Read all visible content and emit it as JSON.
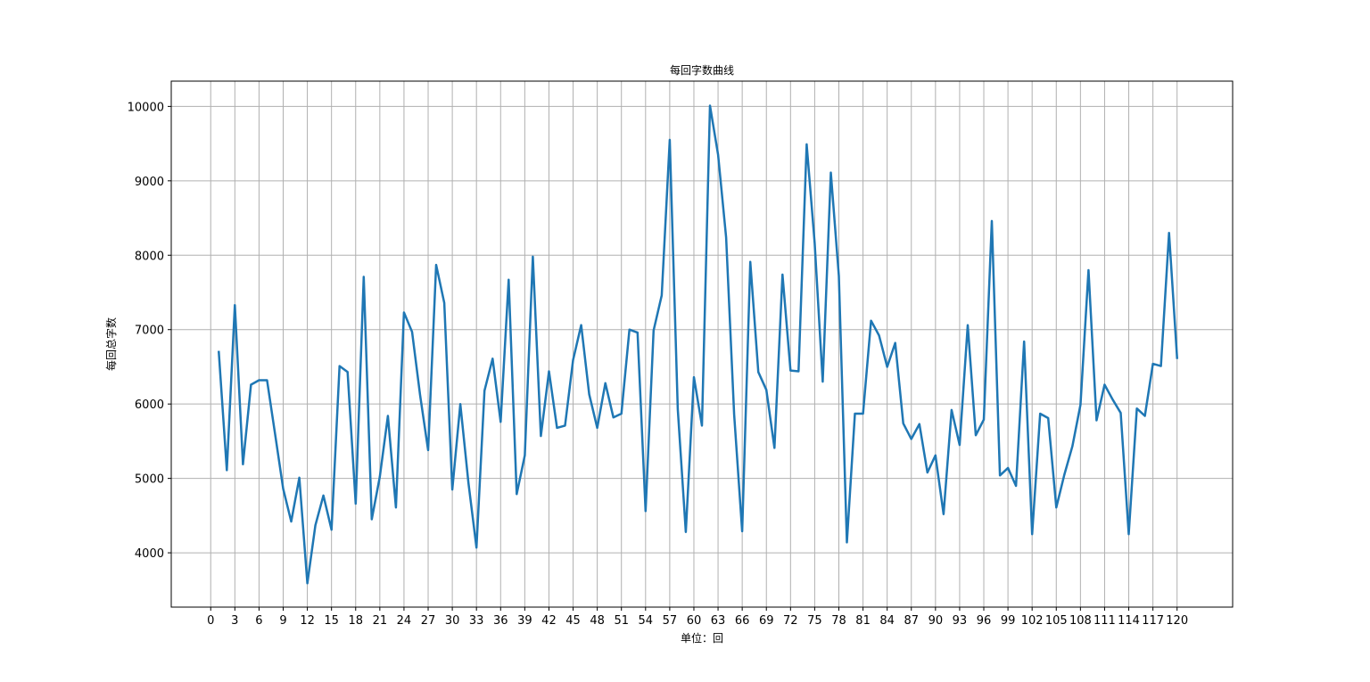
{
  "chart_data": {
    "type": "line",
    "title": "每回字数曲线",
    "xlabel": "单位：回",
    "ylabel": "每回总字数",
    "xlim": [
      -4.9,
      126.9
    ],
    "ylim": [
      3270,
      10340
    ],
    "grid": true,
    "line_color": "#1f77b4",
    "grid_color": "#b0b0b0",
    "xticks": [
      0,
      3,
      6,
      9,
      12,
      15,
      18,
      21,
      24,
      27,
      30,
      33,
      36,
      39,
      42,
      45,
      48,
      51,
      54,
      57,
      60,
      63,
      66,
      69,
      72,
      75,
      78,
      81,
      84,
      87,
      90,
      93,
      96,
      99,
      102,
      105,
      108,
      111,
      114,
      117,
      120
    ],
    "xtick_labels": [
      "0",
      "3",
      "6",
      "9",
      "12",
      "15",
      "18",
      "21",
      "24",
      "27",
      "30",
      "33",
      "36",
      "39",
      "42",
      "45",
      "48",
      "51",
      "54",
      "57",
      "60",
      "63",
      "66",
      "69",
      "72",
      "75",
      "78",
      "81",
      "84",
      "87",
      "90",
      "93",
      "96",
      "99",
      "102",
      "105",
      "108",
      "111",
      "114",
      "117",
      "120"
    ],
    "yticks": [
      4000,
      5000,
      6000,
      7000,
      8000,
      9000,
      10000
    ],
    "ytick_labels": [
      "4000",
      "5000",
      "6000",
      "7000",
      "8000",
      "9000",
      "10000"
    ],
    "series": [
      {
        "x": [
          1,
          2,
          3,
          4,
          5,
          6,
          7,
          8,
          9,
          10,
          11,
          12,
          13,
          14,
          15,
          16,
          17,
          18,
          19,
          20,
          21,
          22,
          23,
          24,
          25,
          26,
          27,
          28,
          29,
          30,
          31,
          32,
          33,
          34,
          35,
          36,
          37,
          38,
          39,
          40,
          41,
          42,
          43,
          44,
          45,
          46,
          47,
          48,
          49,
          50,
          51,
          52,
          53,
          54,
          55,
          56,
          57,
          58,
          59,
          60,
          61,
          62,
          63,
          64,
          65,
          66,
          67,
          68,
          69,
          70,
          71,
          72,
          73,
          74,
          75,
          76,
          77,
          78,
          79,
          80,
          81,
          82,
          83,
          84,
          85,
          86,
          87,
          88,
          89,
          90,
          91,
          92,
          93,
          94,
          95,
          96,
          97,
          98,
          99,
          100,
          101,
          102,
          103,
          104,
          105,
          106,
          107,
          108,
          109,
          110,
          111,
          112,
          113,
          114,
          115,
          116,
          117,
          118,
          119,
          120
        ],
        "values": [
          6700,
          5110,
          7330,
          5190,
          6260,
          6320,
          6320,
          5590,
          4860,
          4420,
          5010,
          3590,
          4370,
          4770,
          4310,
          6510,
          6430,
          4660,
          7710,
          4450,
          5020,
          5840,
          4610,
          7230,
          6970,
          6120,
          5380,
          7870,
          7360,
          4850,
          6000,
          4940,
          4070,
          6180,
          6610,
          5760,
          7670,
          4790,
          5310,
          7980,
          5570,
          6440,
          5680,
          5710,
          6590,
          7060,
          6130,
          5680,
          6280,
          5820,
          5870,
          7000,
          6960,
          4560,
          6990,
          7460,
          9550,
          5930,
          4280,
          6360,
          5710,
          10010,
          9350,
          8240,
          5860,
          4290,
          7910,
          6430,
          6190,
          5410,
          7740,
          6450,
          6440,
          9490,
          8160,
          6300,
          9110,
          7720,
          4140,
          5870,
          5870,
          7120,
          6920,
          6500,
          6820,
          5740,
          5530,
          5730,
          5080,
          5310,
          4520,
          5920,
          5450,
          7060,
          5580,
          5790,
          8460,
          5040,
          5140,
          4900,
          6840,
          4250,
          5870,
          5810,
          4610,
          5050,
          5430,
          5990,
          7800,
          5780,
          6260,
          6060,
          5880,
          4250,
          5940,
          5840,
          6540,
          6510,
          8300,
          6620
        ]
      }
    ]
  }
}
